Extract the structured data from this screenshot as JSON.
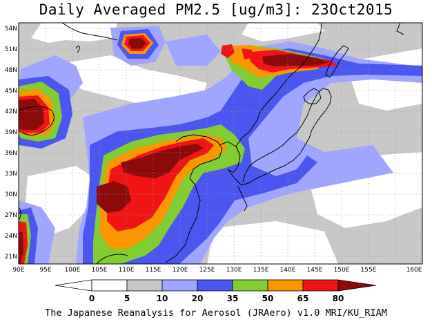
{
  "title": "Daily Averaged PM2.5 [ug/m3]: 23Oct2015",
  "footer": "The Japanese Reanalysis for Aerosol (JRAero) v1.0 MRI/KU_RIAM",
  "lat_labels": [
    "54N",
    "51N",
    "48N",
    "45N",
    "42N",
    "39N",
    "36N",
    "33N",
    "30N",
    "27N",
    "24N",
    "21N"
  ],
  "lon_labels": [
    "90E",
    "95E",
    "100E",
    "105E",
    "110E",
    "115E",
    "120E",
    "125E",
    "130E",
    "135E",
    "140E",
    "145E",
    "150E",
    "155E",
    "160E"
  ],
  "colorbar": {
    "levels": [
      "0",
      "5",
      "10",
      "20",
      "35",
      "50",
      "65",
      "80"
    ],
    "colors": [
      "#ffffff",
      "#c8c8c8",
      "#a0a5ff",
      "#4b55f0",
      "#82cd32",
      "#fa9600",
      "#f01414",
      "#8c0a0a"
    ]
  },
  "palette": {
    "background_low": "#c8c8c8",
    "band_10_20": "#a0a5ff",
    "band_20_35": "#4b55f0",
    "band_35_50": "#82cd32",
    "band_50_65": "#fa9600",
    "band_65_80": "#f01414",
    "band_80_plus": "#8c0a0a"
  }
}
